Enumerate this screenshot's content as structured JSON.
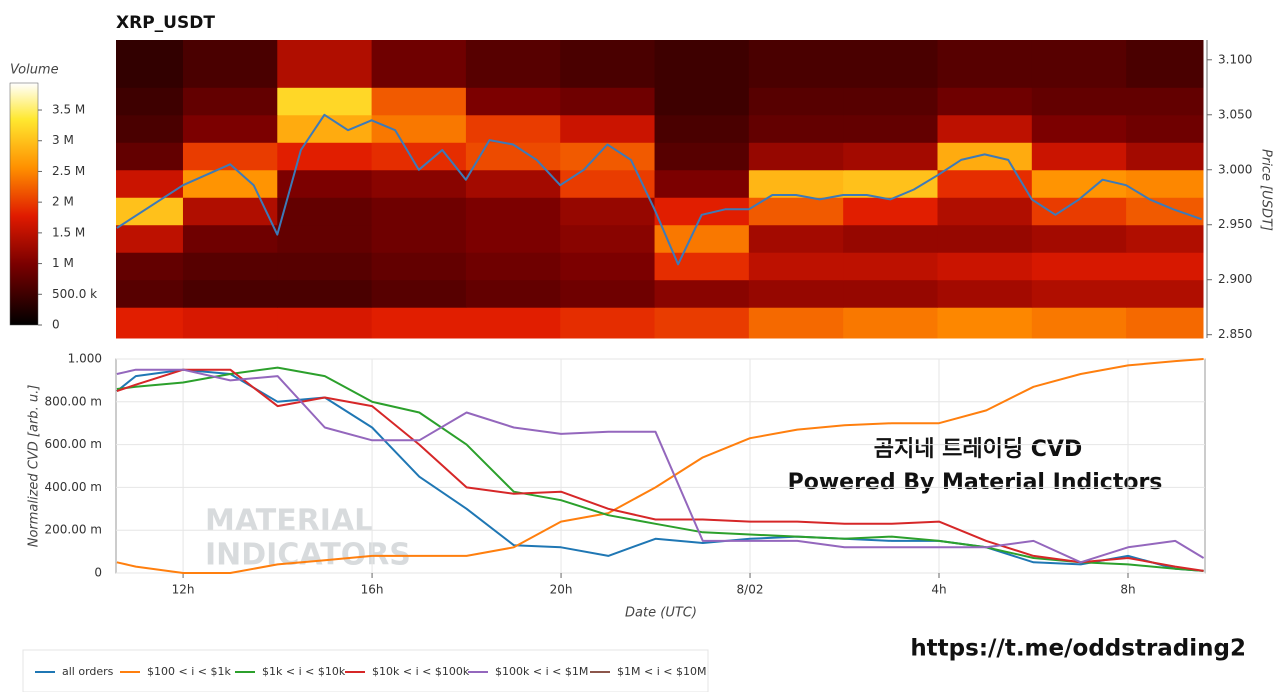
{
  "chart_data": [
    {
      "type": "heatmap",
      "title": "XRP_USDT",
      "colorbar_label": "Volume",
      "ylabel": "Price [USDT]",
      "xlim": [
        10.58,
        33.63
      ],
      "ylim": [
        2.847,
        3.118
      ],
      "yticks": [
        {
          "value": 2.85,
          "label": "2.850"
        },
        {
          "value": 2.9,
          "label": "2.900"
        },
        {
          "value": 2.95,
          "label": "2.950"
        },
        {
          "value": 3.0,
          "label": "3.000"
        },
        {
          "value": 3.05,
          "label": "3.050"
        },
        {
          "value": 3.1,
          "label": "3.100"
        }
      ],
      "zlim": [
        0,
        3940000
      ],
      "zticks": [
        0,
        {
          "value": 500000,
          "label": "500.0 k"
        },
        {
          "value": 1000000,
          "label": "1 M"
        },
        {
          "value": 1500000,
          "label": "1.5 M"
        },
        {
          "value": 2000000,
          "label": "2 M"
        },
        {
          "value": 2500000,
          "label": "2.5 M"
        },
        {
          "value": 3000000,
          "label": "3 M"
        },
        {
          "value": 3500000,
          "label": "3.5 M"
        }
      ],
      "x_bins": [
        10.58,
        12,
        14,
        16,
        18,
        20,
        22,
        24,
        26,
        28,
        30,
        32,
        33.63
      ],
      "y_bins": [
        2.847,
        2.875,
        2.9,
        2.925,
        2.95,
        2.975,
        3.0,
        3.025,
        3.05,
        3.075,
        3.118
      ],
      "z": [
        [
          1800000,
          1700000,
          1700000,
          1800000,
          1800000,
          1900000,
          2000000,
          2300000,
          2400000,
          2500000,
          2400000,
          2300000
        ],
        [
          700000,
          600000,
          600000,
          700000,
          800000,
          900000,
          1100000,
          1200000,
          1200000,
          1300000,
          1400000,
          1400000
        ],
        [
          800000,
          700000,
          700000,
          800000,
          900000,
          1000000,
          1900000,
          1500000,
          1500000,
          1600000,
          1700000,
          1700000
        ],
        [
          1500000,
          900000,
          800000,
          900000,
          1000000,
          1100000,
          2400000,
          1300000,
          1200000,
          1200000,
          1300000,
          1400000
        ],
        [
          3000000,
          1400000,
          800000,
          900000,
          1000000,
          1200000,
          1800000,
          2200000,
          1800000,
          1400000,
          2000000,
          2200000
        ],
        [
          1600000,
          2600000,
          1000000,
          1100000,
          1300000,
          2000000,
          1000000,
          2900000,
          3000000,
          1900000,
          2600000,
          2500000
        ],
        [
          800000,
          2000000,
          1800000,
          1900000,
          2100000,
          2200000,
          700000,
          1200000,
          1300000,
          2800000,
          1600000,
          1300000
        ],
        [
          600000,
          1000000,
          2800000,
          2400000,
          2000000,
          1600000,
          600000,
          800000,
          800000,
          1500000,
          1000000,
          900000
        ],
        [
          500000,
          800000,
          3200000,
          2200000,
          1000000,
          900000,
          500000,
          700000,
          700000,
          900000,
          800000,
          800000
        ],
        [
          400000,
          600000,
          1400000,
          900000,
          700000,
          600000,
          500000,
          600000,
          600000,
          700000,
          700000,
          600000
        ]
      ],
      "price_line": {
        "color": "#3d7ab8",
        "x": [
          10.6,
          12,
          13,
          13.5,
          14,
          14.5,
          15,
          15.5,
          16,
          16.5,
          17,
          17.5,
          18,
          18.5,
          19,
          19.5,
          20,
          20.5,
          21,
          21.5,
          22,
          22.5,
          23,
          23.5,
          24,
          24.5,
          25,
          25.5,
          26,
          26.5,
          27,
          27.5,
          28,
          28.5,
          29,
          29.5,
          30,
          30.5,
          31,
          31.5,
          32,
          32.5,
          33,
          33.6
        ],
        "values": [
          2.947,
          2.986,
          3.005,
          2.986,
          2.941,
          3.018,
          3.05,
          3.036,
          3.045,
          3.036,
          3.0,
          3.018,
          2.991,
          3.027,
          3.023,
          3.009,
          2.986,
          3.0,
          3.023,
          3.009,
          2.964,
          2.914,
          2.959,
          2.964,
          2.964,
          2.977,
          2.977,
          2.973,
          2.977,
          2.977,
          2.973,
          2.982,
          2.995,
          3.009,
          3.014,
          3.009,
          2.973,
          2.959,
          2.973,
          2.991,
          2.986,
          2.973,
          2.964,
          2.955
        ]
      }
    },
    {
      "type": "line",
      "xlabel": "Date (UTC)",
      "ylabel": "Normalized CVD [arb. u.]",
      "xlim": [
        10.58,
        33.63
      ],
      "ylim": [
        0,
        1
      ],
      "xticks": [
        {
          "value": 12,
          "label": "12h"
        },
        {
          "value": 16,
          "label": "16h"
        },
        {
          "value": 20,
          "label": "20h"
        },
        {
          "value": 24,
          "label": "8/02"
        },
        {
          "value": 28,
          "label": "4h"
        },
        {
          "value": 32,
          "label": "8h"
        }
      ],
      "yticks": [
        0,
        {
          "value": 0.2,
          "label": "200.00 m"
        },
        {
          "value": 0.4,
          "label": "400.00 m"
        },
        {
          "value": 0.6,
          "label": "600.00 m"
        },
        {
          "value": 0.8,
          "label": "800.00 m"
        },
        {
          "value": 1,
          "label": "1.000"
        }
      ],
      "grid": true,
      "legend": "bottom",
      "x": [
        10.6,
        11,
        12,
        13,
        14,
        15,
        16,
        17,
        18,
        19,
        20,
        21,
        22,
        23,
        24,
        25,
        26,
        27,
        28,
        29,
        30,
        31,
        32,
        33,
        33.6
      ],
      "series": [
        {
          "name": "all orders",
          "color": "#1f77b4",
          "values": [
            0.85,
            0.92,
            0.95,
            0.93,
            0.8,
            0.82,
            0.68,
            0.45,
            0.3,
            0.13,
            0.12,
            0.08,
            0.16,
            0.14,
            0.16,
            0.17,
            0.16,
            0.15,
            0.15,
            0.12,
            0.05,
            0.04,
            0.08,
            0.02,
            0.01
          ]
        },
        {
          "name": "$100 < i < $1k",
          "color": "#ff7f0e",
          "values": [
            0.05,
            0.03,
            0.0,
            0.0,
            0.04,
            0.06,
            0.08,
            0.08,
            0.08,
            0.12,
            0.24,
            0.28,
            0.4,
            0.54,
            0.63,
            0.67,
            0.69,
            0.7,
            0.7,
            0.76,
            0.87,
            0.93,
            0.97,
            0.99,
            1.0
          ]
        },
        {
          "name": "$1k < i < $10k",
          "color": "#2ca02c",
          "values": [
            0.86,
            0.87,
            0.89,
            0.93,
            0.96,
            0.92,
            0.8,
            0.75,
            0.6,
            0.38,
            0.34,
            0.27,
            0.23,
            0.19,
            0.18,
            0.17,
            0.16,
            0.17,
            0.15,
            0.12,
            0.07,
            0.05,
            0.04,
            0.02,
            0.01
          ]
        },
        {
          "name": "$10k < i < $100k",
          "color": "#d62728",
          "values": [
            0.85,
            0.88,
            0.95,
            0.95,
            0.78,
            0.82,
            0.78,
            0.6,
            0.4,
            0.37,
            0.38,
            0.3,
            0.25,
            0.25,
            0.24,
            0.24,
            0.23,
            0.23,
            0.24,
            0.15,
            0.08,
            0.05,
            0.07,
            0.03,
            0.01
          ]
        },
        {
          "name": "$100k < i < $1M",
          "color": "#9467bd",
          "values": [
            0.93,
            0.95,
            0.95,
            0.9,
            0.92,
            0.68,
            0.62,
            0.62,
            0.75,
            0.68,
            0.65,
            0.66,
            0.66,
            0.15,
            0.15,
            0.15,
            0.12,
            0.12,
            0.12,
            0.12,
            0.15,
            0.05,
            0.12,
            0.15,
            0.07
          ]
        },
        {
          "name": "$1M < i < $10M",
          "color": "#8c564b",
          "values": [
            null,
            null,
            null,
            null,
            null,
            null,
            null,
            null,
            null,
            null,
            null,
            null,
            null,
            null,
            null,
            null,
            null,
            null,
            null,
            null,
            null,
            null,
            null,
            null,
            null
          ]
        }
      ],
      "annotations": [
        "곰지네 트레이딩 CVD",
        "Powered By Material Indictors"
      ],
      "watermark": [
        "MATERIAL",
        "INDICATORS"
      ]
    }
  ],
  "footer_link": "https://t.me/oddstrading2"
}
